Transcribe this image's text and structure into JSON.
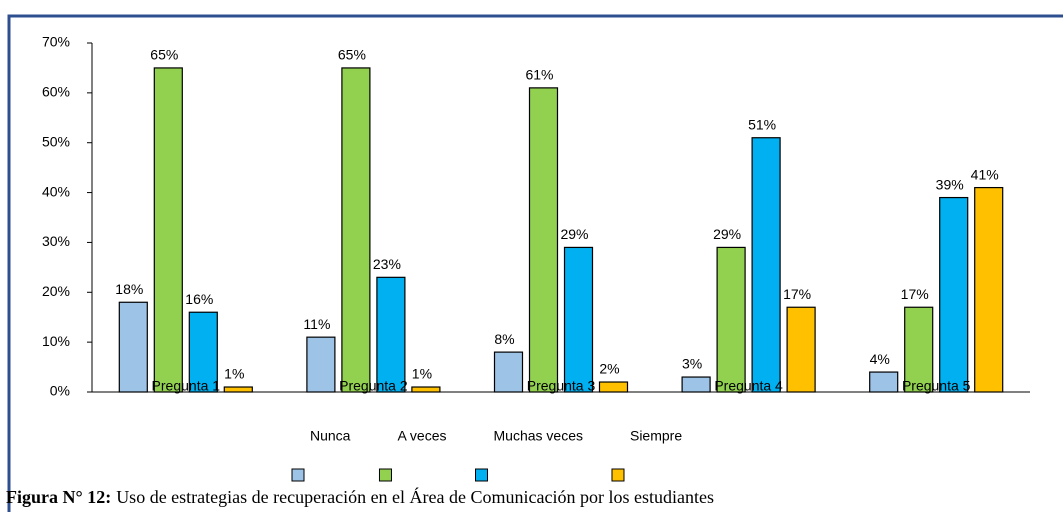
{
  "chart_data": {
    "type": "bar",
    "categories": [
      "Pregunta 1",
      "Pregunta 2",
      "Pregunta 3",
      "Pregunta 4",
      "Pregunta 5"
    ],
    "series": [
      {
        "name": "Nunca",
        "color": "#9dc3e6",
        "values": [
          18,
          11,
          8,
          3,
          4
        ],
        "value_labels": [
          "18%",
          "11%",
          "8%",
          "3%",
          "4%"
        ]
      },
      {
        "name": "A veces",
        "color": "#92d050",
        "values": [
          65,
          65,
          61,
          29,
          17
        ],
        "value_labels": [
          "65%",
          "65%",
          "61%",
          "29%",
          "17%"
        ]
      },
      {
        "name": "Muchas veces",
        "color": "#00b0f0",
        "values": [
          16,
          23,
          29,
          51,
          39
        ],
        "value_labels": [
          "16%",
          "23%",
          "29%",
          "51%",
          "39%"
        ]
      },
      {
        "name": "Siempre",
        "color": "#ffc000",
        "values": [
          1,
          1,
          2,
          17,
          41
        ],
        "value_labels": [
          "1%",
          "1%",
          "2%",
          "17%",
          "41%"
        ]
      }
    ],
    "ylim": [
      0,
      70
    ],
    "yticks": [
      {
        "value": 0,
        "label": "0%"
      },
      {
        "value": 10,
        "label": "10%"
      },
      {
        "value": 20,
        "label": "20%"
      },
      {
        "value": 30,
        "label": "30%"
      },
      {
        "value": 40,
        "label": "40%"
      },
      {
        "value": 50,
        "label": "50%"
      },
      {
        "value": 60,
        "label": "60%"
      },
      {
        "value": 70,
        "label": "70%"
      }
    ],
    "grid": false,
    "caption": {
      "label": "Figura N° 12:",
      "text": "Uso de estrategias de recuperación en el Área de Comunicación por los estudiantes"
    }
  }
}
